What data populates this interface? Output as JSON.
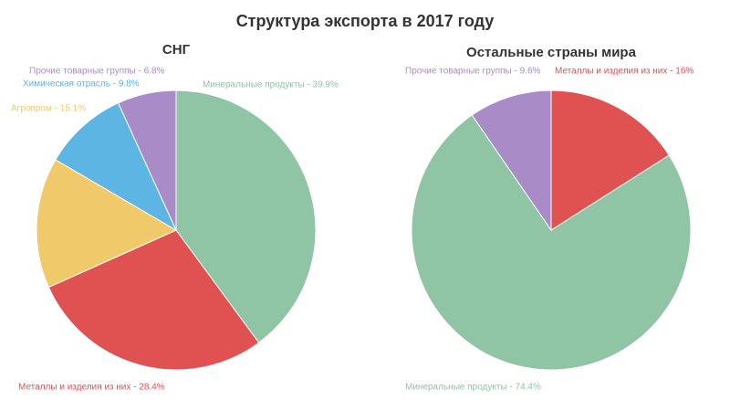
{
  "title": "Структура экспорта в 2017 году",
  "chart_data": [
    {
      "type": "pie",
      "title": "СНГ",
      "values": [
        39.9,
        28.4,
        15.1,
        9.8,
        6.8
      ],
      "value_labels": [
        "Минеральные продукты - 39.9%",
        "Металлы и изделия из них - 28.4%",
        "Агропром - 15.1%",
        "Химическая отрасль - 9.8%",
        "Прочие товарные группы - 6.8%"
      ],
      "colors": [
        "#8fc4a5",
        "#e05252",
        "#f0c96a",
        "#5cb5e3",
        "#a98bc8"
      ]
    },
    {
      "type": "pie",
      "title": "Остальные страны мира",
      "values": [
        16,
        74.4,
        9.6
      ],
      "value_labels": [
        "Металлы и изделия из них - 16%",
        "Минеральные продукты - 74.4%",
        "Прочие товарные группы - 9.6%"
      ],
      "colors": [
        "#e05252",
        "#8fc4a5",
        "#a98bc8"
      ]
    }
  ]
}
